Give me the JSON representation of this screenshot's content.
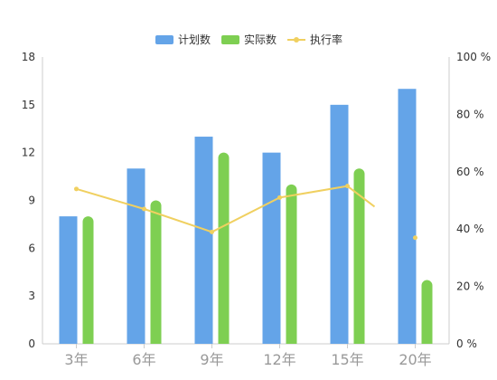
{
  "chart_data": {
    "type": "bar",
    "categories": [
      "3年",
      "6年",
      "9年",
      "12年",
      "15年",
      "20年"
    ],
    "series": [
      {
        "name": "计划数",
        "type": "bar",
        "axis": "left",
        "color": "#64a4e8",
        "values": [
          8,
          11,
          13,
          12,
          15,
          16
        ]
      },
      {
        "name": "实际数",
        "type": "bar",
        "axis": "left",
        "color": "#7ecf52",
        "values": [
          8,
          9,
          12,
          10,
          11,
          4
        ]
      },
      {
        "name": "执行率",
        "type": "line",
        "axis": "right",
        "color": "#f0d060",
        "values": [
          54,
          47,
          39,
          51,
          55,
          37
        ]
      }
    ],
    "y_left": {
      "min": 0,
      "max": 18,
      "ticks": [
        0,
        3,
        6,
        9,
        12,
        15,
        18
      ]
    },
    "y_right": {
      "min": 0,
      "max": 100,
      "ticks": [
        "0 %",
        "20 %",
        "40 %",
        "60 %",
        "80 %",
        "100 %"
      ],
      "tick_values": [
        0,
        20,
        40,
        60,
        80,
        100
      ]
    },
    "legend_position": "top-center",
    "grid": false
  }
}
